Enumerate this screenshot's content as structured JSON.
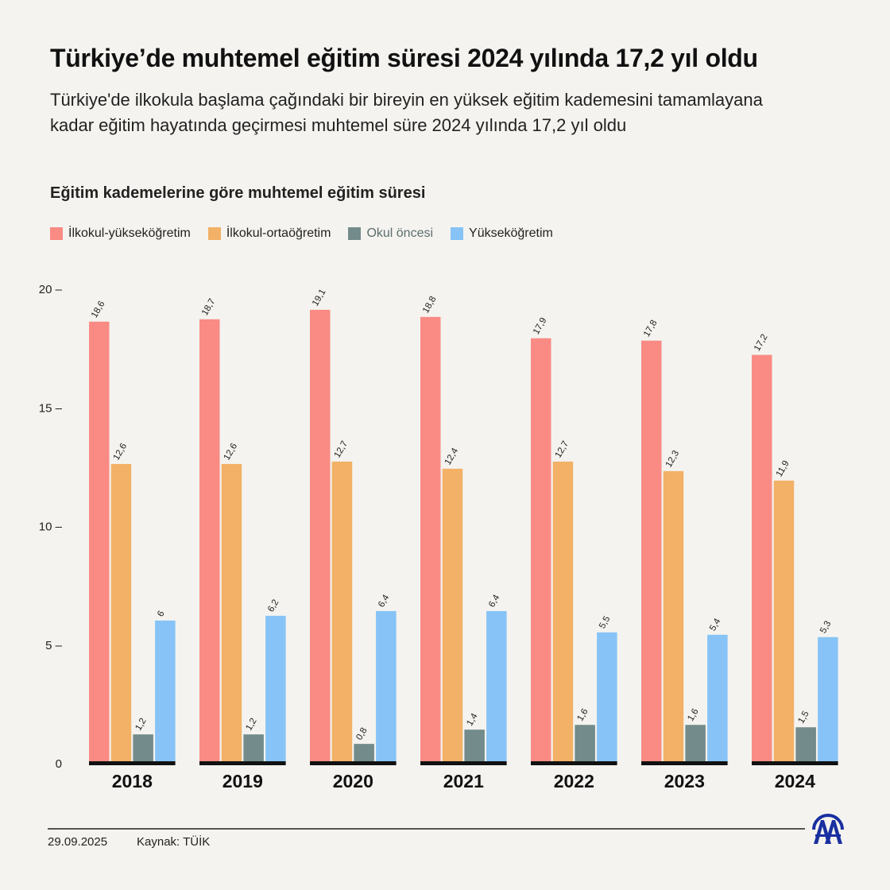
{
  "header": {
    "title": "Türkiye’de muhtemel eğitim süresi 2024 yılında 17,2 yıl oldu",
    "subtitle": "Türkiye'de ilkokula başlama çağındaki bir bireyin en yüksek eğitim kademesini tamamlayana kadar eğitim hayatında geçirmesi muhtemel süre 2024 yılında 17,2 yıl oldu"
  },
  "chart_data": {
    "type": "bar",
    "title": "Eğitim kademelerine göre muhtemel eğitim süresi",
    "categories": [
      "2018",
      "2019",
      "2020",
      "2021",
      "2022",
      "2023",
      "2024"
    ],
    "series": [
      {
        "name": "İlkokul-yükseköğretim",
        "color": "#f98b84",
        "values": [
          18.6,
          18.7,
          19.1,
          18.8,
          17.9,
          17.8,
          17.2
        ]
      },
      {
        "name": "İlkokul-ortaöğretim",
        "color": "#f2b166",
        "values": [
          12.6,
          12.6,
          12.7,
          12.4,
          12.7,
          12.3,
          11.9
        ]
      },
      {
        "name": "Okul öncesi",
        "color": "#738b8a",
        "values": [
          1.2,
          1.2,
          0.8,
          1.4,
          1.6,
          1.6,
          1.5
        ]
      },
      {
        "name": "Yükseköğretim",
        "color": "#87c3f6",
        "values": [
          6,
          6.2,
          6.4,
          6.4,
          5.5,
          5.4,
          5.3
        ]
      }
    ],
    "yticks": [
      0,
      5,
      10,
      15,
      20
    ],
    "ylim": [
      0,
      20
    ],
    "grid": false,
    "legend": "top-left",
    "decimal_separator": ","
  },
  "footer": {
    "date": "29.09.2025",
    "source": "Kaynak: TÜİK",
    "logo_text": "AA",
    "logo_color": "#1a2fa0"
  }
}
